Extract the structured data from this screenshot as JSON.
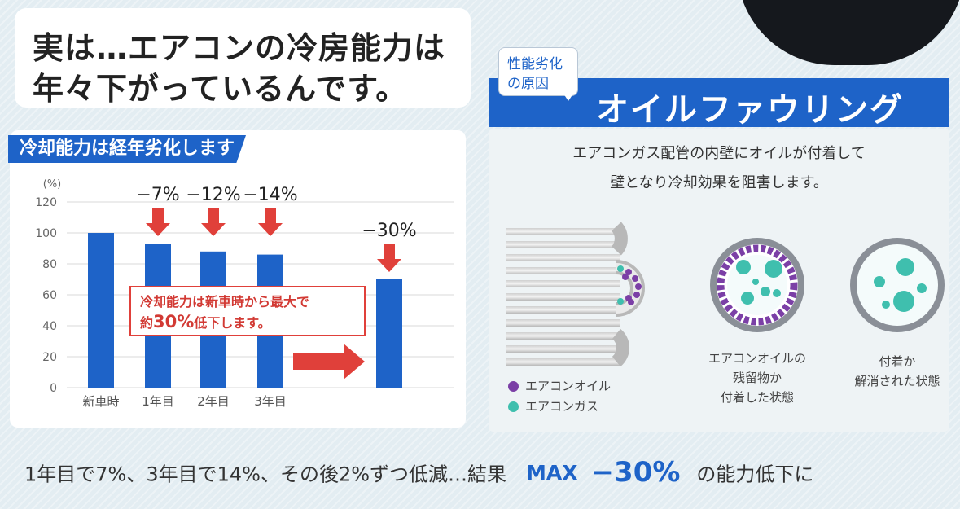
{
  "headline": {
    "line1": "実は…エアコンの冷房能力は",
    "line2": "年々下がっているんです。"
  },
  "chart_data": {
    "type": "bar",
    "title": "冷却能力は経年劣化します",
    "ylabel": "(%)",
    "ylim": [
      0,
      120
    ],
    "yticks": [
      0,
      20,
      40,
      60,
      80,
      100,
      120
    ],
    "categories": [
      "新車時",
      "1年目",
      "2年目",
      "3年目",
      ""
    ],
    "values": [
      100,
      93,
      88,
      86,
      70
    ],
    "drop_labels": [
      "",
      "−7%",
      "−12%",
      "−14%",
      "−30%"
    ],
    "callout": {
      "line1": "冷却能力は新車時から最大で",
      "line2_pre": "約",
      "line2_strong": "30%",
      "line2_post": "低下します。"
    },
    "colors": {
      "bar": "#1e63c8",
      "arrow": "#e0403a",
      "grid": "#d9d9d9"
    }
  },
  "cause": {
    "bubble_line1": "性能劣化",
    "bubble_line2": "の原因",
    "title": "オイルファウリング",
    "desc_line1": "エアコンガス配管の内壁にオイルが付着して",
    "desc_line2": "壁となり冷却効果を阻害します。"
  },
  "legend": {
    "oil": "エアコンオイル",
    "gas": "エアコンガス",
    "oil_color": "#7b3fa6",
    "gas_color": "#3fbfae"
  },
  "cross_sections": [
    {
      "lines": [
        "エアコンオイルの",
        "残留物か",
        "付着した状態"
      ]
    },
    {
      "lines": [
        "付着か",
        "解消された状態"
      ]
    }
  ],
  "footer": {
    "text": "1年目で7%、3年目で14%、その後2%ずつ低減…結果",
    "max": "MAX",
    "pct": "−30%",
    "tail": "の能力低下に"
  }
}
